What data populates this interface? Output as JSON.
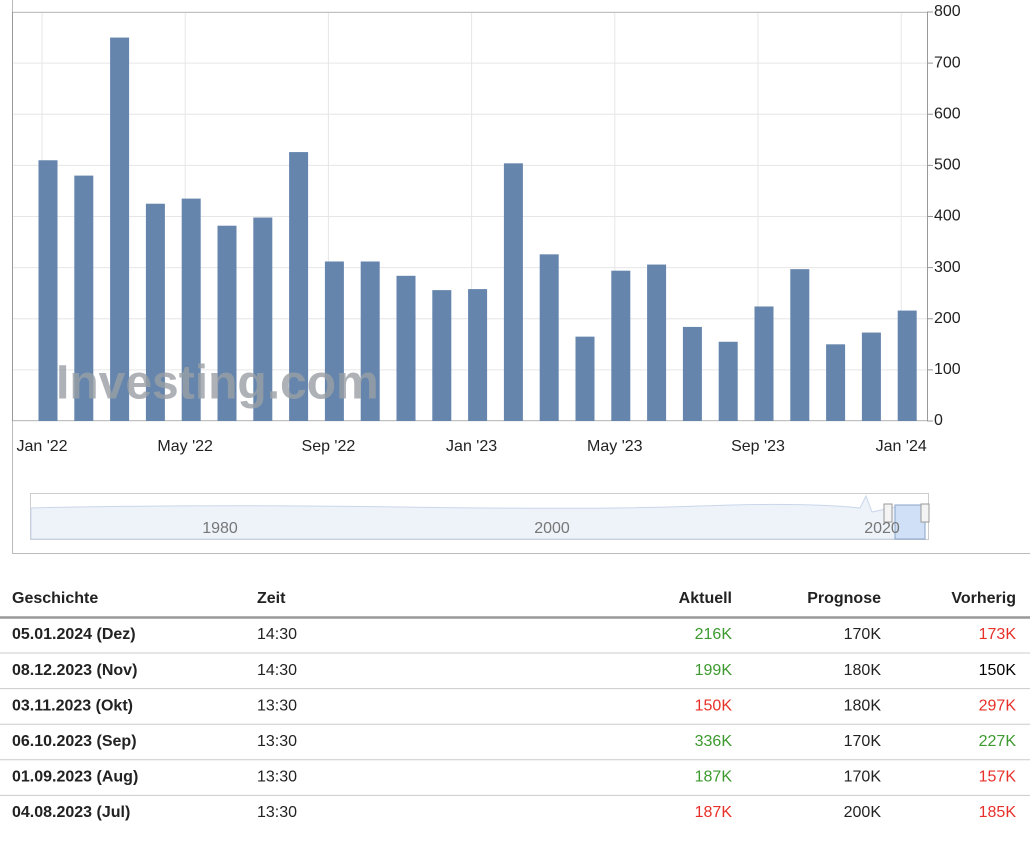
{
  "chart_data": {
    "type": "bar",
    "watermark": "Investing.com",
    "categories": [
      "Jan '22",
      null,
      null,
      null,
      "May '22",
      null,
      null,
      null,
      "Sep '22",
      null,
      null,
      null,
      "Jan '23",
      null,
      null,
      null,
      "May '23",
      null,
      null,
      null,
      "Sep '23",
      null,
      null,
      null,
      "Jan '24"
    ],
    "values": [
      510,
      480,
      750,
      425,
      435,
      382,
      398,
      526,
      312,
      312,
      284,
      256,
      258,
      504,
      326,
      165,
      294,
      306,
      184,
      155,
      224,
      297,
      150,
      173,
      216
    ],
    "color": "#6585ad",
    "ylim": [
      0,
      800
    ],
    "yticks": [
      0,
      100,
      200,
      300,
      400,
      500,
      600,
      700,
      800
    ],
    "grid": true,
    "navigator_labels": [
      "1980",
      "2000",
      "2020"
    ]
  },
  "table": {
    "headers": [
      "Geschichte",
      "Zeit",
      "Aktuell",
      "Prognose",
      "Vorherig"
    ],
    "rows": [
      {
        "date": "05.01.2024 (Dez)",
        "time": "14:30",
        "actual": "216K",
        "actual_color": "#3c9a2e",
        "forecast": "170K",
        "previous": "173K",
        "previous_color": "#e8302a"
      },
      {
        "date": "08.12.2023 (Nov)",
        "time": "14:30",
        "actual": "199K",
        "actual_color": "#3c9a2e",
        "forecast": "180K",
        "previous": "150K",
        "previous_color": "#000000"
      },
      {
        "date": "03.11.2023 (Okt)",
        "time": "13:30",
        "actual": "150K",
        "actual_color": "#e8302a",
        "forecast": "180K",
        "previous": "297K",
        "previous_color": "#e8302a"
      },
      {
        "date": "06.10.2023 (Sep)",
        "time": "13:30",
        "actual": "336K",
        "actual_color": "#3c9a2e",
        "forecast": "170K",
        "previous": "227K",
        "previous_color": "#3c9a2e"
      },
      {
        "date": "01.09.2023 (Aug)",
        "time": "13:30",
        "actual": "187K",
        "actual_color": "#3c9a2e",
        "forecast": "170K",
        "previous": "157K",
        "previous_color": "#e8302a"
      },
      {
        "date": "04.08.2023 (Jul)",
        "time": "13:30",
        "actual": "187K",
        "actual_color": "#e8302a",
        "forecast": "200K",
        "previous": "185K",
        "previous_color": "#e8302a"
      }
    ]
  }
}
